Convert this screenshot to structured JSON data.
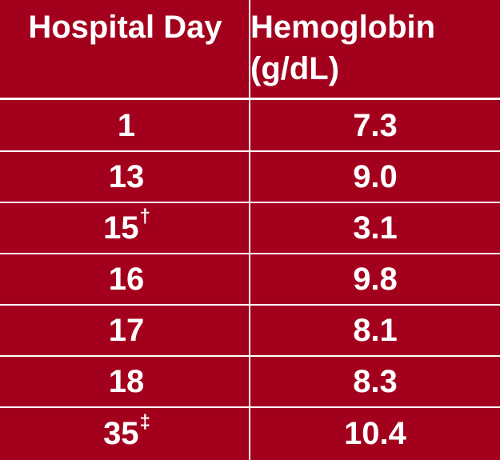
{
  "table": {
    "background_color": "#a3001e",
    "text_color": "#ffffff",
    "header": {
      "col1": "Hospital Day",
      "col2_line1": "Hemoglobin",
      "col2_line2": "(g/dL)"
    },
    "rows": [
      {
        "day": "1",
        "mark": "",
        "hemoglobin": "7.3"
      },
      {
        "day": "13",
        "mark": "",
        "hemoglobin": "9.0"
      },
      {
        "day": "15",
        "mark": "†",
        "hemoglobin": "3.1"
      },
      {
        "day": "16",
        "mark": "",
        "hemoglobin": "9.8"
      },
      {
        "day": "17",
        "mark": "",
        "hemoglobin": "8.1"
      },
      {
        "day": "18",
        "mark": "",
        "hemoglobin": "8.3"
      },
      {
        "day": "35",
        "mark": "‡",
        "hemoglobin": "10.4"
      }
    ]
  }
}
